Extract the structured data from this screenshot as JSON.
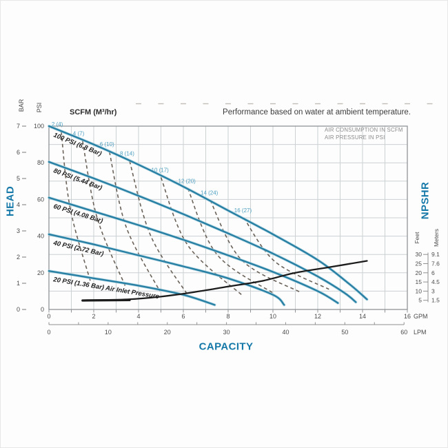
{
  "note": "Performance based on water at ambient temperature.",
  "chart_data": {
    "type": "line",
    "scfm_header": "SCFM (M³/hr)",
    "legend": {
      "line1": "AIR CONSUMPTION IN SCFM",
      "line2": "AIR PRESSURE IN PSI"
    },
    "axis_titles": {
      "head": "HEAD",
      "capacity": "CAPACITY",
      "npshr": "NPSHR"
    },
    "axes": {
      "bar": {
        "label": "BAR",
        "ticks": [
          0,
          1,
          2,
          3,
          4,
          5,
          6,
          7
        ],
        "max": 7
      },
      "psi": {
        "label": "PSI",
        "ticks": [
          0,
          20,
          40,
          60,
          80,
          100
        ],
        "max": 100
      },
      "gpm": {
        "label": "GPM",
        "ticks": [
          0,
          2,
          4,
          6,
          8,
          10,
          12,
          14,
          16
        ],
        "max": 16
      },
      "lpm": {
        "label": "LPM",
        "ticks": [
          0,
          10,
          20,
          30,
          40,
          50,
          60
        ],
        "max": 60
      },
      "npshr_feet": {
        "label": "Feet",
        "ticks": [
          30,
          25,
          20,
          15,
          10,
          5
        ]
      },
      "npshr_meters": {
        "label": "Meters",
        "ticks": [
          "9.1",
          "7.6",
          "6",
          "4.5",
          "3",
          "1.5"
        ]
      }
    },
    "pressure_curves": [
      {
        "label": "100 PSI (6.8 Bar)",
        "points": [
          [
            0,
            100
          ],
          [
            2,
            90
          ],
          [
            4,
            79
          ],
          [
            6,
            67
          ],
          [
            8,
            54
          ],
          [
            10,
            41
          ],
          [
            12,
            27
          ],
          [
            13.4,
            14
          ],
          [
            14.2,
            5.5
          ]
        ]
      },
      {
        "label": "80 PSI (5.44 Bar)",
        "points": [
          [
            0,
            80.5
          ],
          [
            2,
            71.5
          ],
          [
            4,
            62
          ],
          [
            6,
            52
          ],
          [
            8,
            41.5
          ],
          [
            10,
            30.5
          ],
          [
            12,
            18
          ],
          [
            13.2,
            9
          ],
          [
            13.7,
            4
          ]
        ]
      },
      {
        "label": "60 PSI (4.08 Bar)",
        "points": [
          [
            0,
            61
          ],
          [
            2,
            53.5
          ],
          [
            4,
            46
          ],
          [
            6,
            38
          ],
          [
            8,
            29.5
          ],
          [
            10,
            20.5
          ],
          [
            12,
            10
          ],
          [
            12.9,
            3.5
          ]
        ]
      },
      {
        "label": "40 PSI (2.72 Bar)",
        "points": [
          [
            0,
            41
          ],
          [
            2,
            35.5
          ],
          [
            4,
            29.5
          ],
          [
            6,
            23.5
          ],
          [
            8,
            17
          ],
          [
            10,
            8
          ],
          [
            10.5,
            2.5
          ]
        ]
      },
      {
        "label": "20 PSI (1.36 Bar) Air Inlet Pressure",
        "points": [
          [
            0,
            21
          ],
          [
            2,
            17
          ],
          [
            4,
            13
          ],
          [
            6,
            8
          ],
          [
            7.4,
            2.5
          ]
        ]
      }
    ],
    "scfm_curves": [
      {
        "label": "2 (4)",
        "points": [
          [
            0.55,
            97
          ],
          [
            0.95,
            55
          ],
          [
            1.85,
            15.5
          ]
        ]
      },
      {
        "label": "4 (7)",
        "points": [
          [
            1.5,
            92
          ],
          [
            2.15,
            50
          ],
          [
            3.4,
            13
          ]
        ]
      },
      {
        "label": "6 (10)",
        "points": [
          [
            2.7,
            86
          ],
          [
            3.45,
            45
          ],
          [
            4.95,
            10
          ]
        ]
      },
      {
        "label": "8 (14)",
        "points": [
          [
            3.6,
            81
          ],
          [
            4.55,
            40
          ],
          [
            6.25,
            7
          ]
        ]
      },
      {
        "label": "10 (17)",
        "points": [
          [
            5.0,
            72
          ],
          [
            6.2,
            35
          ],
          [
            8.6,
            8
          ]
        ]
      },
      {
        "label": "12 (20)",
        "points": [
          [
            6.2,
            66
          ],
          [
            7.5,
            30
          ],
          [
            10.0,
            9
          ]
        ]
      },
      {
        "label": "14 (24)",
        "points": [
          [
            7.2,
            59.5
          ],
          [
            8.6,
            27
          ],
          [
            11.2,
            9.5
          ]
        ]
      },
      {
        "label": "16 (27)",
        "points": [
          [
            8.7,
            50
          ],
          [
            10.1,
            26
          ],
          [
            12.5,
            11
          ]
        ]
      }
    ],
    "npshr_curve": {
      "points": [
        [
          1.5,
          5
        ],
        [
          3.5,
          5.5
        ],
        [
          5,
          7
        ],
        [
          6.5,
          9.5
        ],
        [
          8,
          12.5
        ],
        [
          9.5,
          15.5
        ],
        [
          11,
          20
        ],
        [
          12.5,
          23
        ],
        [
          14.2,
          26.5
        ]
      ]
    },
    "colors": {
      "curve_blue": "#2780a4",
      "curve_blue_halo": "#a9d2e0",
      "accent_blue": "#1478a8",
      "scfm_label_blue": "#4d9fc0",
      "npshr_black": "#1c1c1c",
      "dashed_gray": "#6a6158",
      "grid": "#ccd1d4",
      "frame": "#8f9396",
      "tick_text": "#4a4a4a",
      "legend_text": "#8b8b8b",
      "note_text": "#3c3c3c",
      "curve_label_text": "#232323"
    }
  }
}
